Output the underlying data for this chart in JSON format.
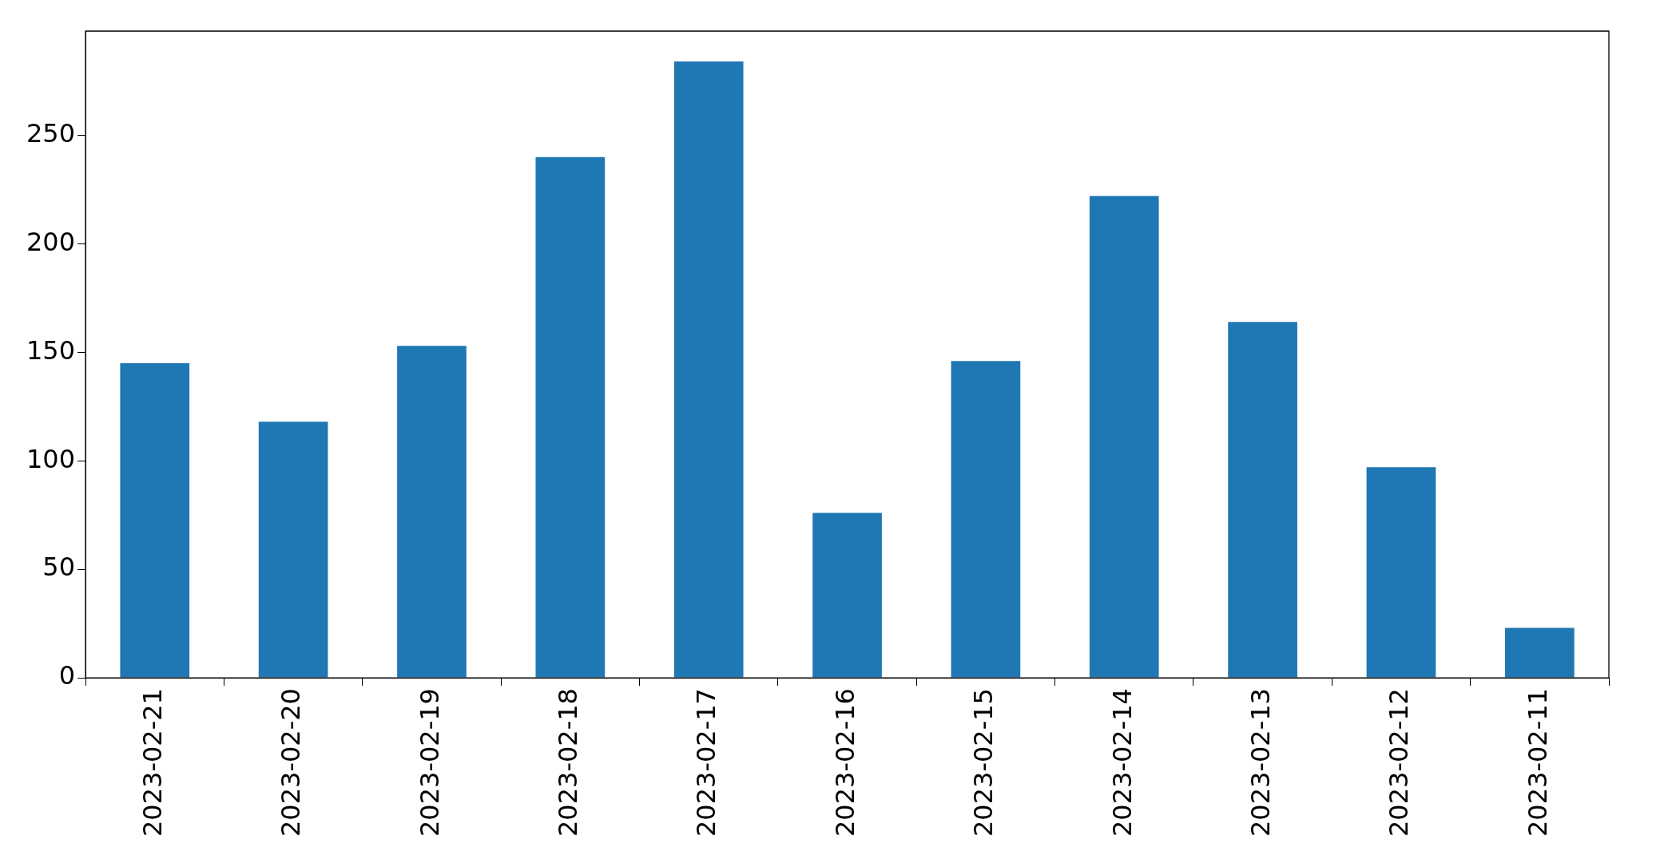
{
  "chart_data": {
    "type": "bar",
    "categories": [
      "2023-02-21",
      "2023-02-20",
      "2023-02-19",
      "2023-02-18",
      "2023-02-17",
      "2023-02-16",
      "2023-02-15",
      "2023-02-14",
      "2023-02-13",
      "2023-02-12",
      "2023-02-11"
    ],
    "values": [
      145,
      118,
      153,
      240,
      284,
      76,
      146,
      222,
      164,
      97,
      23
    ],
    "color": "#1f77b4",
    "ylim": [
      0,
      298
    ],
    "yticks": [
      0,
      50,
      100,
      150,
      200,
      250
    ],
    "grid": false,
    "legend": false
  }
}
